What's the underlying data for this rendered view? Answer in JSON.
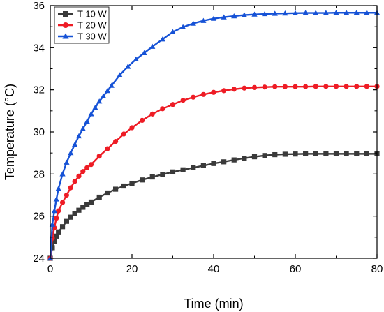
{
  "chart_data": {
    "type": "line",
    "title": "",
    "xlabel": "Time (min)",
    "ylabel": "Temperature (°C)",
    "xlim": [
      0,
      80
    ],
    "ylim": [
      24,
      36
    ],
    "x_ticks": [
      0,
      20,
      40,
      60,
      80
    ],
    "y_ticks": [
      24,
      26,
      28,
      30,
      32,
      34,
      36
    ],
    "x_tick_labels": [
      "0",
      "20",
      "40",
      "60",
      "80"
    ],
    "y_tick_labels": [
      "24",
      "26",
      "28",
      "30",
      "32",
      "34",
      "36"
    ],
    "grid": false,
    "legend_position": "top-left",
    "series": [
      {
        "name": "T 10 W",
        "color": "#3a3a3a",
        "marker": "square",
        "x": [
          0,
          0.5,
          1,
          1.5,
          2,
          3,
          4,
          5,
          6,
          7,
          8,
          9,
          10,
          12,
          14,
          16,
          18,
          20,
          22.5,
          25,
          27.5,
          30,
          32.5,
          35,
          37.5,
          40,
          42.5,
          45,
          47.5,
          50,
          52.5,
          55,
          57.5,
          60,
          62.5,
          65,
          67.5,
          70,
          72.5,
          75,
          77.5,
          80
        ],
        "y": [
          24.0,
          24.5,
          24.8,
          25.05,
          25.25,
          25.5,
          25.75,
          25.95,
          26.12,
          26.28,
          26.42,
          26.55,
          26.67,
          26.9,
          27.1,
          27.28,
          27.43,
          27.56,
          27.72,
          27.86,
          27.98,
          28.1,
          28.2,
          28.3,
          28.4,
          28.5,
          28.58,
          28.67,
          28.75,
          28.82,
          28.88,
          28.92,
          28.94,
          28.95,
          28.96,
          28.96,
          28.96,
          28.96,
          28.96,
          28.96,
          28.96,
          28.96
        ]
      },
      {
        "name": "T 20 W",
        "color": "#ee1c25",
        "marker": "circle",
        "x": [
          0,
          0.5,
          1,
          1.5,
          2,
          3,
          4,
          5,
          6,
          7,
          8,
          9,
          10,
          12,
          14,
          16,
          18,
          20,
          22.5,
          25,
          27.5,
          30,
          32.5,
          35,
          37.5,
          40,
          42.5,
          45,
          47.5,
          50,
          52.5,
          55,
          57.5,
          60,
          62.5,
          65,
          67.5,
          70,
          72.5,
          75,
          77.5,
          80
        ],
        "y": [
          24.0,
          24.95,
          25.45,
          25.9,
          26.25,
          26.65,
          27.0,
          27.35,
          27.65,
          27.9,
          28.12,
          28.3,
          28.45,
          28.85,
          29.2,
          29.55,
          29.9,
          30.2,
          30.55,
          30.85,
          31.1,
          31.3,
          31.5,
          31.65,
          31.78,
          31.88,
          31.96,
          32.03,
          32.08,
          32.11,
          32.13,
          32.15,
          32.15,
          32.15,
          32.15,
          32.16,
          32.16,
          32.16,
          32.16,
          32.16,
          32.16,
          32.16
        ]
      },
      {
        "name": "T 30 W",
        "color": "#1652d6",
        "marker": "triangle",
        "x": [
          0,
          0.5,
          1,
          1.5,
          2,
          3,
          4,
          5,
          6,
          7,
          8,
          9,
          10,
          11,
          12,
          13,
          14,
          15,
          17,
          19,
          21,
          23,
          25,
          27.5,
          30,
          32.5,
          35,
          37.5,
          40,
          42.5,
          45,
          47.5,
          50,
          52.5,
          55,
          57.5,
          60,
          62.5,
          65,
          67.5,
          70,
          72.5,
          75,
          77.5,
          80
        ],
        "y": [
          24.0,
          25.6,
          26.25,
          26.8,
          27.3,
          28.0,
          28.55,
          29.0,
          29.4,
          29.8,
          30.15,
          30.5,
          30.85,
          31.15,
          31.45,
          31.7,
          31.95,
          32.2,
          32.7,
          33.1,
          33.45,
          33.75,
          34.05,
          34.4,
          34.75,
          34.98,
          35.15,
          35.28,
          35.38,
          35.45,
          35.5,
          35.55,
          35.58,
          35.6,
          35.62,
          35.63,
          35.64,
          35.65,
          35.65,
          35.65,
          35.66,
          35.66,
          35.66,
          35.66,
          35.66
        ]
      }
    ]
  }
}
